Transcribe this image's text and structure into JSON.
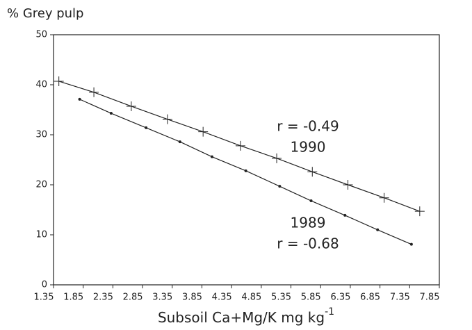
{
  "chart_data": {
    "type": "line",
    "y_label": "% Grey pulp",
    "x_label": {
      "text": "Subsoil Ca+Mg/K mg kg",
      "superscript": "-1"
    },
    "xlim": [
      1.35,
      7.85
    ],
    "xticks": [
      1.35,
      1.85,
      2.35,
      2.85,
      3.35,
      3.85,
      4.35,
      4.85,
      5.35,
      5.85,
      6.35,
      6.85,
      7.35,
      7.85
    ],
    "ylim": [
      0,
      50
    ],
    "yticks": [
      0,
      10,
      20,
      30,
      40,
      50
    ],
    "series": [
      {
        "name": "1990",
        "color": "#222222",
        "marker": "plus",
        "x": [
          1.44,
          2.03,
          2.66,
          3.27,
          3.87,
          4.5,
          5.11,
          5.71,
          6.31,
          6.92,
          7.52
        ],
        "values": [
          40.7,
          38.5,
          35.7,
          33.1,
          30.6,
          27.8,
          25.3,
          22.6,
          20.0,
          17.4,
          14.7
        ]
      },
      {
        "name": "1989",
        "color": "#222222",
        "marker": "dot",
        "x": [
          1.79,
          2.32,
          2.91,
          3.48,
          4.02,
          4.59,
          5.16,
          5.69,
          6.26,
          6.81,
          7.38
        ],
        "values": [
          37.1,
          34.3,
          31.4,
          28.6,
          25.6,
          22.8,
          19.7,
          16.8,
          13.9,
          11.0,
          8.1
        ]
      }
    ],
    "annotations": [
      "r = -0.49",
      "r = -0.68"
    ]
  }
}
